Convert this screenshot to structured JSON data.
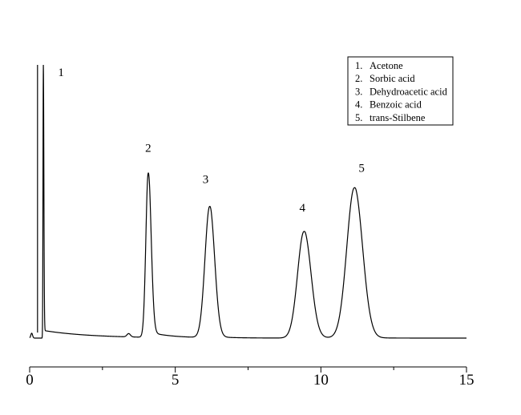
{
  "chart_data": {
    "type": "line",
    "title": "",
    "xlabel": "",
    "ylabel": "",
    "xlim": [
      0,
      15
    ],
    "x_ticks": [
      0,
      5,
      10,
      15
    ],
    "x_tick_labels": [
      "0",
      "5",
      "10",
      "15"
    ],
    "y_axis_shown": false,
    "grid": false,
    "legend_position": "top-right",
    "line_color": "#000000",
    "baseline": 0.0,
    "peaks": [
      {
        "label": "1",
        "x": 0.47,
        "height": 1.0
      },
      {
        "label": "2",
        "x": 4.07,
        "height": 0.6
      },
      {
        "label": "3",
        "x": 6.18,
        "height": 0.48
      },
      {
        "label": "4",
        "x": 9.42,
        "height": 0.39
      },
      {
        "label": "5",
        "x": 11.15,
        "height": 0.55
      }
    ],
    "legend": [
      {
        "num": "1.",
        "name": "Acetone"
      },
      {
        "num": "2.",
        "name": "Sorbic acid"
      },
      {
        "num": "3.",
        "name": "Dehydroacetic acid"
      },
      {
        "num": "4.",
        "name": "Benzoic acid"
      },
      {
        "num": "5.",
        "name": "trans-Stilbene"
      }
    ]
  }
}
